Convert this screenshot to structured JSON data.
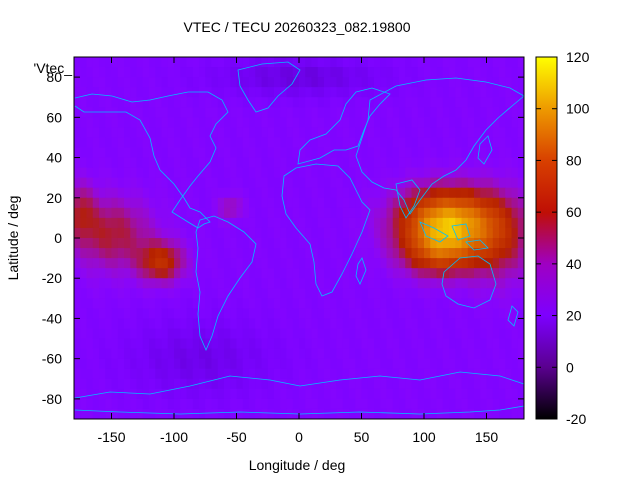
{
  "title": "VTEC / TECU 20260323_082.19800",
  "chart_data": {
    "type": "heatmap",
    "title": "VTEC / TECU 20260323_082.19800",
    "xlabel": "Longitude / deg",
    "ylabel": "Latitude / deg",
    "xlim": [
      -180,
      180
    ],
    "ylim": [
      -90,
      90
    ],
    "x_ticks": [
      -150,
      -100,
      -50,
      0,
      50,
      100,
      150
    ],
    "y_ticks": [
      -80,
      -60,
      -40,
      -20,
      0,
      20,
      40,
      60,
      80
    ],
    "colorbar": {
      "range": [
        -20,
        120
      ],
      "ticks": [
        -20,
        0,
        20,
        40,
        60,
        80,
        100,
        120
      ]
    },
    "series_label": "'Vtec_",
    "colormap": "gnuplot-pm3d-default",
    "coastline_color": "#00bfff",
    "grid": false
  }
}
